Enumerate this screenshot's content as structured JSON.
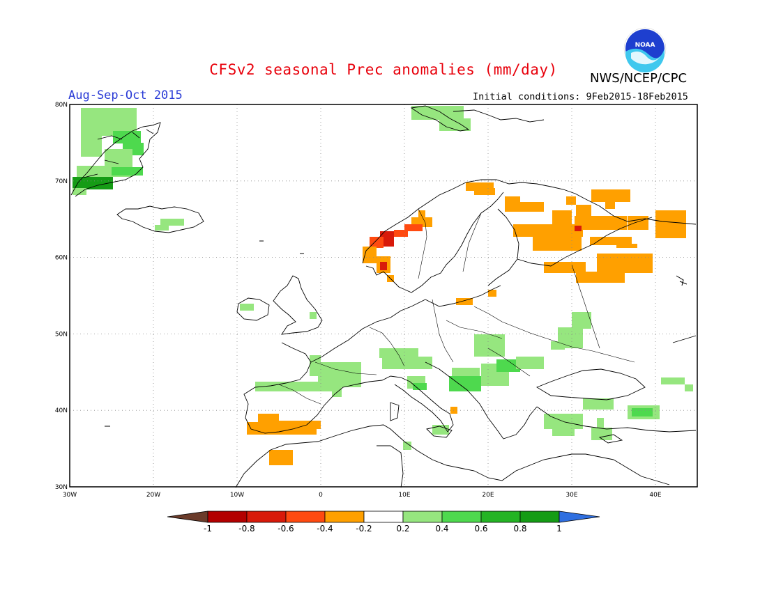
{
  "header": {
    "title": "CFSv2 seasonal Prec anomalies (mm/day)",
    "period": "Aug-Sep-Oct 2015",
    "agency": "NWS/NCEP/CPC",
    "initial_conditions": "Initial conditions: 9Feb2015-18Feb2015",
    "logo_text": "NOAA"
  },
  "map": {
    "lon_range": [
      -30,
      45
    ],
    "lat_range": [
      30,
      80
    ],
    "lon_ticks": [
      "30W",
      "20W",
      "10W",
      "0",
      "10E",
      "20E",
      "30E",
      "40E"
    ],
    "lat_ticks": [
      "30N",
      "40N",
      "50N",
      "60N",
      "70N",
      "80N"
    ]
  },
  "colorbar": {
    "labels": [
      "-1",
      "-0.8",
      "-0.6",
      "-0.4",
      "-0.2",
      "0.2",
      "0.4",
      "0.6",
      "0.8",
      "1"
    ],
    "colors": {
      "below_-1": "#6b3b2a",
      "-1_-0.8": "#b30000",
      "-0.8_-0.6": "#d81a0a",
      "-0.6_-0.4": "#ff4a10",
      "-0.4_-0.2": "#ffa000",
      "-0.2_0.2": "#ffffff",
      "0.2_0.4": "#96e67f",
      "0.4_0.6": "#4ed94e",
      "0.6_0.8": "#24b424",
      "0.8_1": "#159c15",
      "above_1": "#2f6fe0"
    }
  }
}
